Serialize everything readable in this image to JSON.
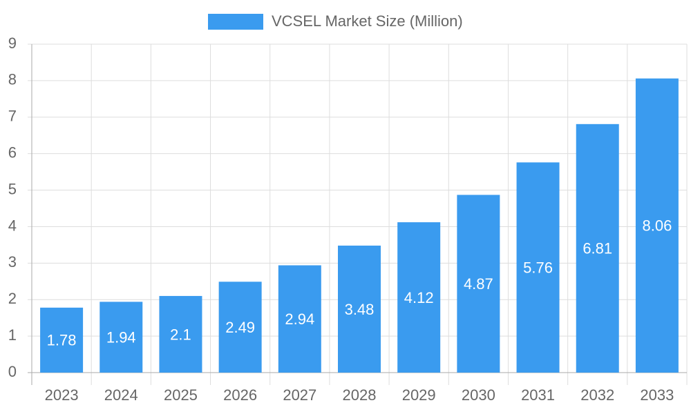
{
  "chart_data": {
    "type": "bar",
    "series_name": "VCSEL Market Size (Million)",
    "categories": [
      "2023",
      "2024",
      "2025",
      "2026",
      "2027",
      "2028",
      "2029",
      "2030",
      "2031",
      "2032",
      "2033"
    ],
    "values": [
      1.78,
      1.94,
      2.1,
      2.49,
      2.94,
      3.48,
      4.12,
      4.87,
      5.76,
      6.81,
      8.06
    ],
    "color": "#3a9bef",
    "ylim": [
      0,
      9
    ],
    "yticks": [
      0,
      1,
      2,
      3,
      4,
      5,
      6,
      7,
      8,
      9
    ],
    "grid": true
  }
}
